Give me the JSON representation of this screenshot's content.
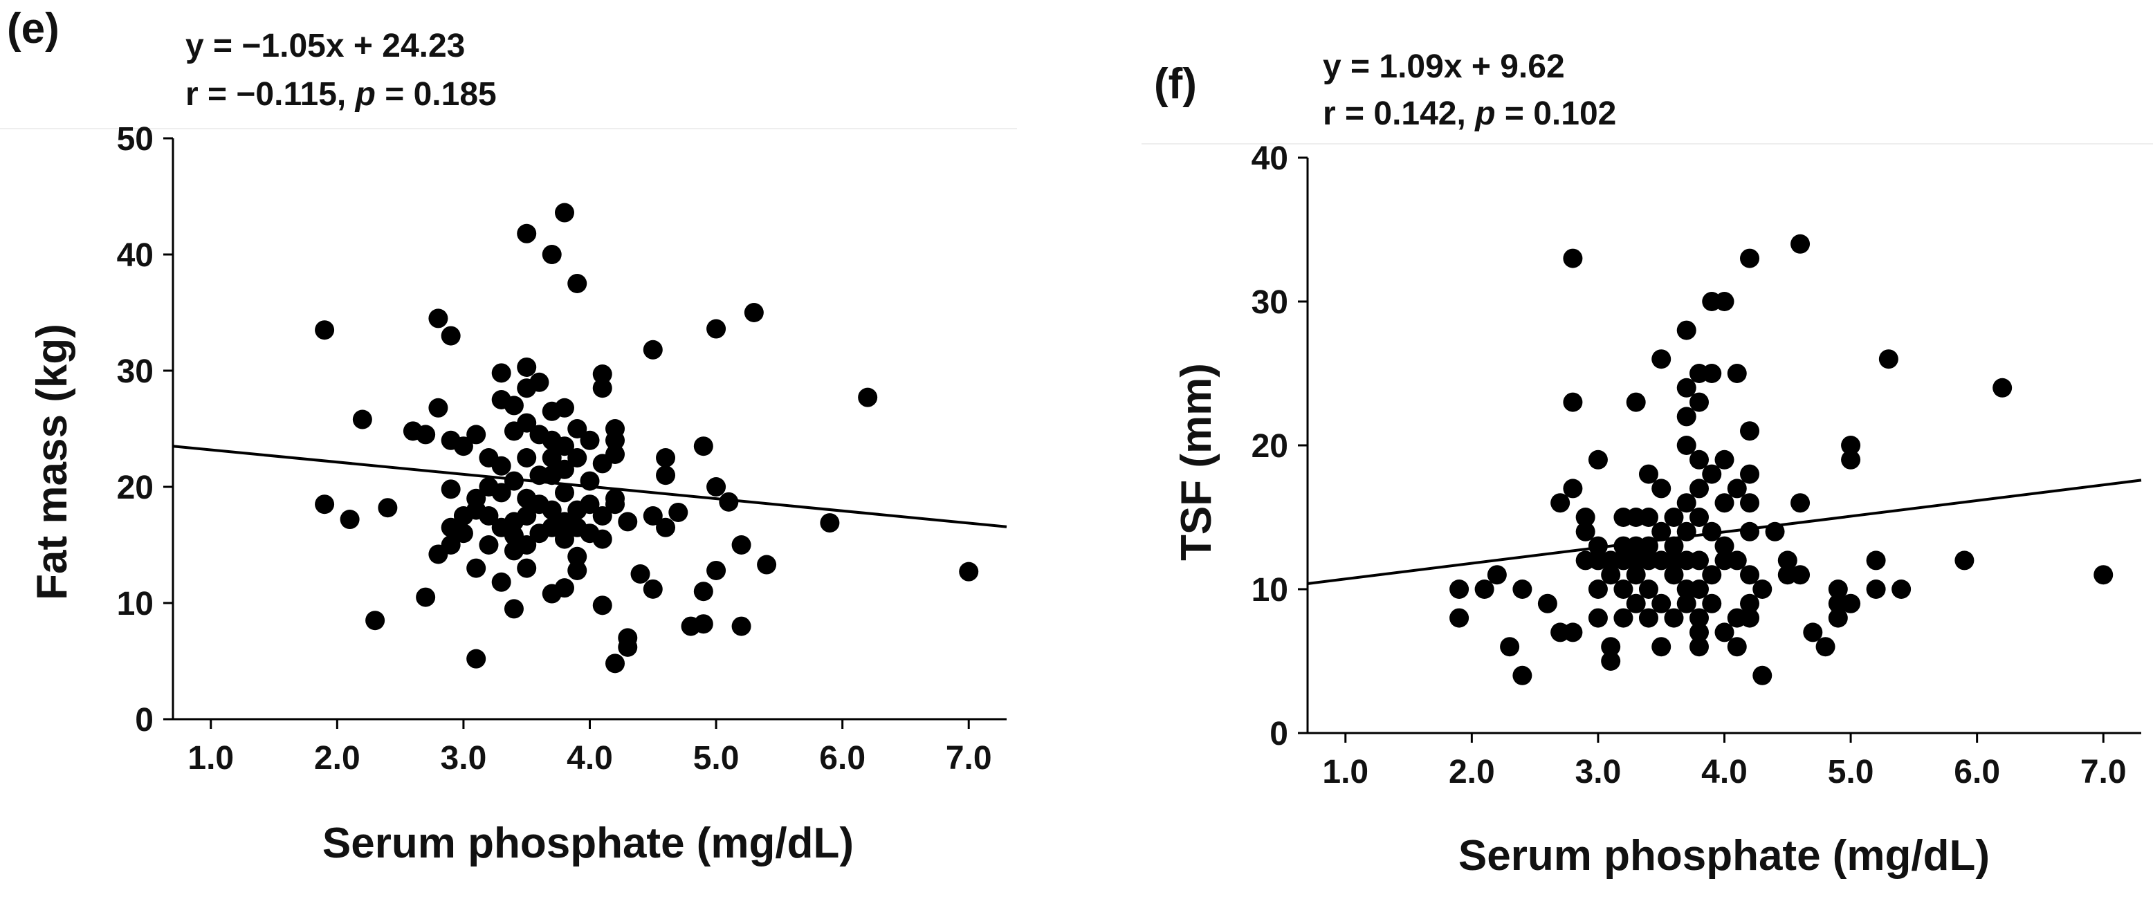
{
  "colors": {
    "points": "#000000",
    "line": "#000000",
    "axis": "#000000",
    "text": "#111111",
    "background": "#ffffff"
  },
  "chart_data": [
    {
      "type": "scatter",
      "panel_label": "(e)",
      "title": "",
      "equation": "y = −1.05x + 24.23",
      "stats_r": "r = −0.115,",
      "stats_p_symbol": "p",
      "stats_p_value": " = 0.185",
      "xlabel": "Serum phosphate (mg/dL)",
      "ylabel": "Fat mass (kg)",
      "xlim": [
        0.7,
        7.3
      ],
      "ylim": [
        0,
        50
      ],
      "xticks": [
        1.0,
        2.0,
        3.0,
        4.0,
        5.0,
        6.0,
        7.0
      ],
      "xtick_labels": [
        "1.0",
        "2.0",
        "3.0",
        "4.0",
        "5.0",
        "6.0",
        "7.0"
      ],
      "yticks": [
        0,
        10,
        20,
        30,
        40,
        50
      ],
      "ytick_labels": [
        "0",
        "10",
        "20",
        "30",
        "40",
        "50"
      ],
      "regression": {
        "slope": -1.05,
        "intercept": 24.23
      },
      "points": [
        [
          1.9,
          33.5
        ],
        [
          1.9,
          18.5
        ],
        [
          2.1,
          17.2
        ],
        [
          2.2,
          25.8
        ],
        [
          2.3,
          8.5
        ],
        [
          2.4,
          18.2
        ],
        [
          2.6,
          24.8
        ],
        [
          2.7,
          24.5
        ],
        [
          2.7,
          10.5
        ],
        [
          2.8,
          34.5
        ],
        [
          2.8,
          26.8
        ],
        [
          2.8,
          14.2
        ],
        [
          2.9,
          33.0
        ],
        [
          2.9,
          24.0
        ],
        [
          2.9,
          19.8
        ],
        [
          2.9,
          16.5
        ],
        [
          2.9,
          15.0
        ],
        [
          3.0,
          23.5
        ],
        [
          3.0,
          17.5
        ],
        [
          3.0,
          16.0
        ],
        [
          3.1,
          24.5
        ],
        [
          3.1,
          19.0
        ],
        [
          3.1,
          18.0
        ],
        [
          3.1,
          13.0
        ],
        [
          3.1,
          5.2
        ],
        [
          3.2,
          22.5
        ],
        [
          3.2,
          20.0
        ],
        [
          3.2,
          17.5
        ],
        [
          3.2,
          15.0
        ],
        [
          3.3,
          29.8
        ],
        [
          3.3,
          27.5
        ],
        [
          3.3,
          21.8
        ],
        [
          3.3,
          19.5
        ],
        [
          3.3,
          16.5
        ],
        [
          3.3,
          11.8
        ],
        [
          3.4,
          27.0
        ],
        [
          3.4,
          24.8
        ],
        [
          3.4,
          20.5
        ],
        [
          3.4,
          17.0
        ],
        [
          3.4,
          15.8
        ],
        [
          3.4,
          14.5
        ],
        [
          3.4,
          9.5
        ],
        [
          3.5,
          41.8
        ],
        [
          3.5,
          30.3
        ],
        [
          3.5,
          28.5
        ],
        [
          3.5,
          25.5
        ],
        [
          3.5,
          22.5
        ],
        [
          3.5,
          19.0
        ],
        [
          3.5,
          17.5
        ],
        [
          3.5,
          15.0
        ],
        [
          3.5,
          13.0
        ],
        [
          3.6,
          29.0
        ],
        [
          3.6,
          24.5
        ],
        [
          3.6,
          21.0
        ],
        [
          3.6,
          18.5
        ],
        [
          3.6,
          16.0
        ],
        [
          3.7,
          40.0
        ],
        [
          3.7,
          26.5
        ],
        [
          3.7,
          24.0
        ],
        [
          3.7,
          22.5
        ],
        [
          3.7,
          21.0
        ],
        [
          3.7,
          18.0
        ],
        [
          3.7,
          16.5
        ],
        [
          3.7,
          10.8
        ],
        [
          3.8,
          43.6
        ],
        [
          3.8,
          26.8
        ],
        [
          3.8,
          23.5
        ],
        [
          3.8,
          21.5
        ],
        [
          3.8,
          19.5
        ],
        [
          3.8,
          17.0
        ],
        [
          3.8,
          15.5
        ],
        [
          3.8,
          11.3
        ],
        [
          3.9,
          37.5
        ],
        [
          3.9,
          25.0
        ],
        [
          3.9,
          22.5
        ],
        [
          3.9,
          18.0
        ],
        [
          3.9,
          16.5
        ],
        [
          3.9,
          14.0
        ],
        [
          3.9,
          12.8
        ],
        [
          4.0,
          24.0
        ],
        [
          4.0,
          20.5
        ],
        [
          4.0,
          18.5
        ],
        [
          4.0,
          16.0
        ],
        [
          4.1,
          29.7
        ],
        [
          4.1,
          28.5
        ],
        [
          4.1,
          22.0
        ],
        [
          4.1,
          17.5
        ],
        [
          4.1,
          15.5
        ],
        [
          4.1,
          9.8
        ],
        [
          4.2,
          25.0
        ],
        [
          4.2,
          24.0
        ],
        [
          4.2,
          22.8
        ],
        [
          4.2,
          19.0
        ],
        [
          4.2,
          18.5
        ],
        [
          4.2,
          4.8
        ],
        [
          4.3,
          17.0
        ],
        [
          4.3,
          7.0
        ],
        [
          4.3,
          6.2
        ],
        [
          4.4,
          12.5
        ],
        [
          4.5,
          31.8
        ],
        [
          4.5,
          17.5
        ],
        [
          4.5,
          11.2
        ],
        [
          4.6,
          22.5
        ],
        [
          4.6,
          21.0
        ],
        [
          4.6,
          16.5
        ],
        [
          4.7,
          17.8
        ],
        [
          4.8,
          8.0
        ],
        [
          4.9,
          23.5
        ],
        [
          4.9,
          11.0
        ],
        [
          4.9,
          8.2
        ],
        [
          5.0,
          33.6
        ],
        [
          5.0,
          20.0
        ],
        [
          5.0,
          12.8
        ],
        [
          5.1,
          18.7
        ],
        [
          5.2,
          15.0
        ],
        [
          5.2,
          8.0
        ],
        [
          5.3,
          35.0
        ],
        [
          5.4,
          13.3
        ],
        [
          5.9,
          16.9
        ],
        [
          6.2,
          27.7
        ],
        [
          7.0,
          12.7
        ]
      ]
    },
    {
      "type": "scatter",
      "panel_label": "(f)",
      "title": "",
      "equation": "y = 1.09x + 9.62",
      "stats_r": "r = 0.142,",
      "stats_p_symbol": "p",
      "stats_p_value": " = 0.102",
      "xlabel": "Serum phosphate (mg/dL)",
      "ylabel": "TSF (mm)",
      "xlim": [
        0.7,
        7.3
      ],
      "ylim": [
        0,
        40
      ],
      "xticks": [
        1.0,
        2.0,
        3.0,
        4.0,
        5.0,
        6.0,
        7.0
      ],
      "xtick_labels": [
        "1.0",
        "2.0",
        "3.0",
        "4.0",
        "5.0",
        "6.0",
        "7.0"
      ],
      "yticks": [
        0,
        10,
        20,
        30,
        40
      ],
      "ytick_labels": [
        "0",
        "10",
        "20",
        "30",
        "40"
      ],
      "regression": {
        "slope": 1.09,
        "intercept": 9.62
      },
      "points": [
        [
          1.9,
          10
        ],
        [
          1.9,
          8
        ],
        [
          2.1,
          10
        ],
        [
          2.2,
          11
        ],
        [
          2.3,
          6
        ],
        [
          2.4,
          10
        ],
        [
          2.4,
          4
        ],
        [
          2.6,
          9
        ],
        [
          2.7,
          16
        ],
        [
          2.7,
          7
        ],
        [
          2.8,
          33
        ],
        [
          2.8,
          23
        ],
        [
          2.8,
          17
        ],
        [
          2.8,
          7
        ],
        [
          2.9,
          15
        ],
        [
          2.9,
          14
        ],
        [
          2.9,
          12
        ],
        [
          3.0,
          19
        ],
        [
          3.0,
          13
        ],
        [
          3.0,
          12
        ],
        [
          3.0,
          10
        ],
        [
          3.0,
          8
        ],
        [
          3.1,
          12
        ],
        [
          3.1,
          11
        ],
        [
          3.1,
          6
        ],
        [
          3.1,
          5
        ],
        [
          3.2,
          15
        ],
        [
          3.2,
          13
        ],
        [
          3.2,
          12
        ],
        [
          3.2,
          10
        ],
        [
          3.2,
          8
        ],
        [
          3.3,
          23
        ],
        [
          3.3,
          15
        ],
        [
          3.3,
          13
        ],
        [
          3.3,
          12
        ],
        [
          3.3,
          11
        ],
        [
          3.3,
          9
        ],
        [
          3.4,
          18
        ],
        [
          3.4,
          15
        ],
        [
          3.4,
          13
        ],
        [
          3.4,
          12
        ],
        [
          3.4,
          10
        ],
        [
          3.4,
          8
        ],
        [
          3.5,
          26
        ],
        [
          3.5,
          17
        ],
        [
          3.5,
          14
        ],
        [
          3.5,
          12
        ],
        [
          3.5,
          9
        ],
        [
          3.5,
          6
        ],
        [
          3.6,
          15
        ],
        [
          3.6,
          13
        ],
        [
          3.6,
          12
        ],
        [
          3.6,
          11
        ],
        [
          3.6,
          8
        ],
        [
          3.7,
          28
        ],
        [
          3.7,
          24
        ],
        [
          3.7,
          22
        ],
        [
          3.7,
          20
        ],
        [
          3.7,
          16
        ],
        [
          3.7,
          14
        ],
        [
          3.7,
          12
        ],
        [
          3.7,
          10
        ],
        [
          3.7,
          9
        ],
        [
          3.8,
          25
        ],
        [
          3.8,
          23
        ],
        [
          3.8,
          19
        ],
        [
          3.8,
          17
        ],
        [
          3.8,
          15
        ],
        [
          3.8,
          12
        ],
        [
          3.8,
          10
        ],
        [
          3.8,
          8
        ],
        [
          3.8,
          7
        ],
        [
          3.8,
          6
        ],
        [
          3.9,
          30
        ],
        [
          3.9,
          25
        ],
        [
          3.9,
          18
        ],
        [
          3.9,
          14
        ],
        [
          3.9,
          11
        ],
        [
          3.9,
          9
        ],
        [
          4.0,
          30
        ],
        [
          4.0,
          19
        ],
        [
          4.0,
          16
        ],
        [
          4.0,
          13
        ],
        [
          4.0,
          12
        ],
        [
          4.0,
          7
        ],
        [
          4.1,
          25
        ],
        [
          4.1,
          17
        ],
        [
          4.1,
          12
        ],
        [
          4.1,
          8
        ],
        [
          4.1,
          6
        ],
        [
          4.2,
          33
        ],
        [
          4.2,
          21
        ],
        [
          4.2,
          18
        ],
        [
          4.2,
          16
        ],
        [
          4.2,
          14
        ],
        [
          4.2,
          11
        ],
        [
          4.2,
          9
        ],
        [
          4.2,
          8
        ],
        [
          4.3,
          10
        ],
        [
          4.3,
          4
        ],
        [
          4.4,
          14
        ],
        [
          4.5,
          12
        ],
        [
          4.5,
          11
        ],
        [
          4.6,
          34
        ],
        [
          4.6,
          16
        ],
        [
          4.6,
          11
        ],
        [
          4.7,
          7
        ],
        [
          4.8,
          6
        ],
        [
          4.9,
          10
        ],
        [
          4.9,
          9
        ],
        [
          4.9,
          8
        ],
        [
          5.0,
          20
        ],
        [
          5.0,
          19
        ],
        [
          5.0,
          9
        ],
        [
          5.2,
          12
        ],
        [
          5.2,
          10
        ],
        [
          5.3,
          26
        ],
        [
          5.4,
          10
        ],
        [
          5.9,
          12
        ],
        [
          6.2,
          24
        ],
        [
          7.0,
          11
        ]
      ]
    }
  ]
}
